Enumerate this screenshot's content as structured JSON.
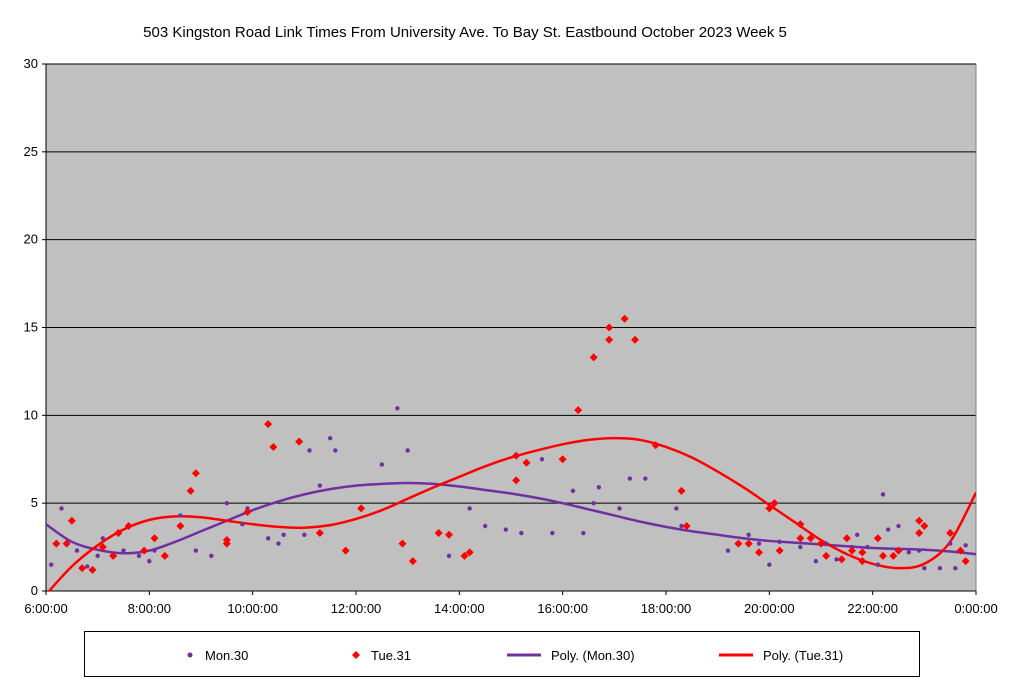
{
  "chart_data": {
    "type": "scatter",
    "title": "503 Kingston Road Link Times From University Ave. To Bay St. Eastbound October 2023  Week 5",
    "xlabel": "",
    "ylabel": "",
    "x_unit": "hours",
    "xlim": [
      6,
      24
    ],
    "ylim": [
      0,
      30
    ],
    "yticks": [
      0,
      5,
      10,
      15,
      20,
      25,
      30
    ],
    "xticks": [
      6,
      8,
      10,
      12,
      14,
      16,
      18,
      20,
      22,
      24
    ],
    "xtick_labels": [
      "6:00:00",
      "8:00:00",
      "10:00:00",
      "12:00:00",
      "14:00:00",
      "16:00:00",
      "18:00:00",
      "20:00:00",
      "22:00:00",
      "0:00:00"
    ],
    "grid": true,
    "plot_background": "#c0c0c0",
    "legend_position": "bottom",
    "series": [
      {
        "name": "Mon.30",
        "marker": "circle",
        "color": "#7030a0",
        "points": [
          [
            6.1,
            1.5
          ],
          [
            6.3,
            4.7
          ],
          [
            6.6,
            2.3
          ],
          [
            6.8,
            1.4
          ],
          [
            7.0,
            2.0
          ],
          [
            7.1,
            3.0
          ],
          [
            7.3,
            2.1
          ],
          [
            7.5,
            2.3
          ],
          [
            7.8,
            2.0
          ],
          [
            8.0,
            1.7
          ],
          [
            8.1,
            2.3
          ],
          [
            8.3,
            2.0
          ],
          [
            8.6,
            4.3
          ],
          [
            8.9,
            2.3
          ],
          [
            9.2,
            2.0
          ],
          [
            9.5,
            5.0
          ],
          [
            9.8,
            3.8
          ],
          [
            9.9,
            4.7
          ],
          [
            10.3,
            3.0
          ],
          [
            10.5,
            2.7
          ],
          [
            10.6,
            3.2
          ],
          [
            11.0,
            3.2
          ],
          [
            11.1,
            8.0
          ],
          [
            11.3,
            6.0
          ],
          [
            11.5,
            8.7
          ],
          [
            11.6,
            8.0
          ],
          [
            12.5,
            7.2
          ],
          [
            12.8,
            10.4
          ],
          [
            13.0,
            8.0
          ],
          [
            13.8,
            2.0
          ],
          [
            14.2,
            4.7
          ],
          [
            14.5,
            3.7
          ],
          [
            14.9,
            3.5
          ],
          [
            15.2,
            3.3
          ],
          [
            15.6,
            7.5
          ],
          [
            15.8,
            3.3
          ],
          [
            16.2,
            5.7
          ],
          [
            16.4,
            3.3
          ],
          [
            16.6,
            5.0
          ],
          [
            16.7,
            5.9
          ],
          [
            17.1,
            4.7
          ],
          [
            17.3,
            6.4
          ],
          [
            17.6,
            6.4
          ],
          [
            18.2,
            4.7
          ],
          [
            18.3,
            3.7
          ],
          [
            19.2,
            2.3
          ],
          [
            19.6,
            3.2
          ],
          [
            19.8,
            2.7
          ],
          [
            20.0,
            1.5
          ],
          [
            20.2,
            2.8
          ],
          [
            20.6,
            2.5
          ],
          [
            20.9,
            1.7
          ],
          [
            21.1,
            2.7
          ],
          [
            21.3,
            1.8
          ],
          [
            21.6,
            2.5
          ],
          [
            21.7,
            3.2
          ],
          [
            21.9,
            2.5
          ],
          [
            22.1,
            1.5
          ],
          [
            22.2,
            5.5
          ],
          [
            22.3,
            3.5
          ],
          [
            22.5,
            3.7
          ],
          [
            22.7,
            2.2
          ],
          [
            22.9,
            2.3
          ],
          [
            23.0,
            1.3
          ],
          [
            23.3,
            1.3
          ],
          [
            23.5,
            2.7
          ],
          [
            23.6,
            1.3
          ],
          [
            23.8,
            2.6
          ]
        ]
      },
      {
        "name": "Tue.31",
        "marker": "diamond",
        "color": "#ff0000",
        "points": [
          [
            6.2,
            2.7
          ],
          [
            6.4,
            2.7
          ],
          [
            6.5,
            4.0
          ],
          [
            6.7,
            1.3
          ],
          [
            6.9,
            1.2
          ],
          [
            7.1,
            2.5
          ],
          [
            7.3,
            2.0
          ],
          [
            7.4,
            3.3
          ],
          [
            7.6,
            3.7
          ],
          [
            7.9,
            2.3
          ],
          [
            8.1,
            3.0
          ],
          [
            8.3,
            2.0
          ],
          [
            8.6,
            3.7
          ],
          [
            8.8,
            5.7
          ],
          [
            8.9,
            6.7
          ],
          [
            9.5,
            2.7
          ],
          [
            9.5,
            2.9
          ],
          [
            9.9,
            4.5
          ],
          [
            10.3,
            9.5
          ],
          [
            10.4,
            8.2
          ],
          [
            10.9,
            8.5
          ],
          [
            11.3,
            3.3
          ],
          [
            11.8,
            2.3
          ],
          [
            12.1,
            4.7
          ],
          [
            12.9,
            2.7
          ],
          [
            13.1,
            1.7
          ],
          [
            13.6,
            3.3
          ],
          [
            13.8,
            3.2
          ],
          [
            14.1,
            2.0
          ],
          [
            14.2,
            2.2
          ],
          [
            15.1,
            6.3
          ],
          [
            15.1,
            7.7
          ],
          [
            15.3,
            7.3
          ],
          [
            16.0,
            7.5
          ],
          [
            16.3,
            10.3
          ],
          [
            16.6,
            13.3
          ],
          [
            16.9,
            15.0
          ],
          [
            16.9,
            14.3
          ],
          [
            17.2,
            15.5
          ],
          [
            17.4,
            14.3
          ],
          [
            17.8,
            8.3
          ],
          [
            18.3,
            5.7
          ],
          [
            18.4,
            3.7
          ],
          [
            19.4,
            2.7
          ],
          [
            19.6,
            2.7
          ],
          [
            19.8,
            2.2
          ],
          [
            20.0,
            4.7
          ],
          [
            20.1,
            5.0
          ],
          [
            20.2,
            2.3
          ],
          [
            20.6,
            3.8
          ],
          [
            20.6,
            3.0
          ],
          [
            20.8,
            3.0
          ],
          [
            21.0,
            2.7
          ],
          [
            21.1,
            2.0
          ],
          [
            21.4,
            1.8
          ],
          [
            21.5,
            3.0
          ],
          [
            21.6,
            2.3
          ],
          [
            21.8,
            2.2
          ],
          [
            21.8,
            1.7
          ],
          [
            22.1,
            3.0
          ],
          [
            22.2,
            2.0
          ],
          [
            22.4,
            2.0
          ],
          [
            22.5,
            2.3
          ],
          [
            22.9,
            3.3
          ],
          [
            22.9,
            4.0
          ],
          [
            23.0,
            3.7
          ],
          [
            23.5,
            3.3
          ],
          [
            23.7,
            2.3
          ],
          [
            23.8,
            1.7
          ]
        ]
      },
      {
        "name": "Poly. (Mon.30)",
        "type": "line",
        "color": "#7030a0",
        "points": [
          [
            6.0,
            3.8
          ],
          [
            6.5,
            2.8
          ],
          [
            7.0,
            2.35
          ],
          [
            7.5,
            2.15
          ],
          [
            8.0,
            2.3
          ],
          [
            8.5,
            2.8
          ],
          [
            9.0,
            3.4
          ],
          [
            9.5,
            4.0
          ],
          [
            10.0,
            4.6
          ],
          [
            10.5,
            5.1
          ],
          [
            11.0,
            5.5
          ],
          [
            11.5,
            5.8
          ],
          [
            12.0,
            6.0
          ],
          [
            12.5,
            6.1
          ],
          [
            13.0,
            6.15
          ],
          [
            13.5,
            6.1
          ],
          [
            14.0,
            5.95
          ],
          [
            14.5,
            5.75
          ],
          [
            15.0,
            5.55
          ],
          [
            15.5,
            5.3
          ],
          [
            16.0,
            5.0
          ],
          [
            16.5,
            4.65
          ],
          [
            17.0,
            4.3
          ],
          [
            17.5,
            3.95
          ],
          [
            18.0,
            3.65
          ],
          [
            18.5,
            3.4
          ],
          [
            19.0,
            3.2
          ],
          [
            19.5,
            3.0
          ],
          [
            20.0,
            2.85
          ],
          [
            20.5,
            2.75
          ],
          [
            21.0,
            2.65
          ],
          [
            21.5,
            2.55
          ],
          [
            22.0,
            2.45
          ],
          [
            22.5,
            2.4
          ],
          [
            23.0,
            2.35
          ],
          [
            23.5,
            2.25
          ],
          [
            24.0,
            2.1
          ]
        ]
      },
      {
        "name": "Poly. (Tue.31)",
        "type": "line",
        "color": "#ff0000",
        "points": [
          [
            6.0,
            -0.2
          ],
          [
            6.5,
            1.4
          ],
          [
            7.0,
            2.6
          ],
          [
            7.5,
            3.5
          ],
          [
            8.0,
            4.05
          ],
          [
            8.5,
            4.25
          ],
          [
            9.0,
            4.2
          ],
          [
            9.5,
            4.0
          ],
          [
            10.0,
            3.8
          ],
          [
            10.5,
            3.65
          ],
          [
            11.0,
            3.6
          ],
          [
            11.5,
            3.75
          ],
          [
            12.0,
            4.1
          ],
          [
            12.5,
            4.6
          ],
          [
            13.0,
            5.25
          ],
          [
            13.5,
            5.9
          ],
          [
            14.0,
            6.5
          ],
          [
            14.5,
            7.1
          ],
          [
            15.0,
            7.6
          ],
          [
            15.5,
            8.0
          ],
          [
            16.0,
            8.35
          ],
          [
            16.5,
            8.6
          ],
          [
            17.0,
            8.7
          ],
          [
            17.5,
            8.6
          ],
          [
            18.0,
            8.2
          ],
          [
            18.5,
            7.6
          ],
          [
            19.0,
            6.8
          ],
          [
            19.5,
            5.9
          ],
          [
            20.0,
            4.9
          ],
          [
            20.5,
            3.9
          ],
          [
            21.0,
            2.9
          ],
          [
            21.5,
            2.1
          ],
          [
            22.0,
            1.55
          ],
          [
            22.5,
            1.3
          ],
          [
            23.0,
            1.55
          ],
          [
            23.5,
            2.8
          ],
          [
            24.0,
            5.6
          ]
        ]
      }
    ]
  },
  "legend": {
    "items": [
      {
        "label": "Mon.30",
        "kind": "circle",
        "color": "#7030a0"
      },
      {
        "label": "Tue.31",
        "kind": "diamond",
        "color": "#ff0000"
      },
      {
        "label": "Poly. (Mon.30)",
        "kind": "line",
        "color": "#7030a0"
      },
      {
        "label": "Poly. (Tue.31)",
        "kind": "line",
        "color": "#ff0000"
      }
    ]
  }
}
